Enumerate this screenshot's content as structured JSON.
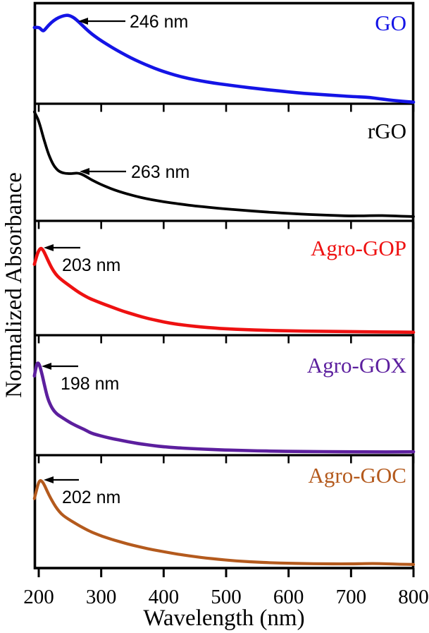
{
  "chart_data": {
    "type": "line",
    "xlabel": "Wavelength (nm)",
    "ylabel": "Normalized Absorbance",
    "xlim": [
      193,
      800
    ],
    "x_ticks": [
      200,
      300,
      400,
      500,
      600,
      700,
      800
    ],
    "x_tick_labels": [
      "200",
      "300",
      "400",
      "500",
      "600",
      "700",
      "800"
    ],
    "y_units": "normalized (arbitrary units, 0-1 per panel)",
    "grid": false,
    "legend_position": "in-panel top-right",
    "frame_color": "#000000",
    "panels": [
      {
        "label": "GO",
        "color": "#1414e6",
        "peak_label": "246 nm",
        "peak_nm": 246,
        "points": [
          [
            193,
            0.755
          ],
          [
            200,
            0.76
          ],
          [
            204,
            0.735
          ],
          [
            207,
            0.72
          ],
          [
            210,
            0.735
          ],
          [
            216,
            0.78
          ],
          [
            224,
            0.825
          ],
          [
            232,
            0.855
          ],
          [
            240,
            0.872
          ],
          [
            246,
            0.878
          ],
          [
            252,
            0.868
          ],
          [
            260,
            0.835
          ],
          [
            270,
            0.775
          ],
          [
            282,
            0.705
          ],
          [
            295,
            0.645
          ],
          [
            310,
            0.585
          ],
          [
            325,
            0.53
          ],
          [
            340,
            0.478
          ],
          [
            355,
            0.432
          ],
          [
            370,
            0.39
          ],
          [
            385,
            0.352
          ],
          [
            400,
            0.318
          ],
          [
            420,
            0.28
          ],
          [
            440,
            0.25
          ],
          [
            460,
            0.226
          ],
          [
            480,
            0.205
          ],
          [
            500,
            0.188
          ],
          [
            525,
            0.168
          ],
          [
            550,
            0.15
          ],
          [
            575,
            0.133
          ],
          [
            600,
            0.117
          ],
          [
            625,
            0.103
          ],
          [
            650,
            0.092
          ],
          [
            675,
            0.082
          ],
          [
            700,
            0.072
          ],
          [
            715,
            0.068
          ],
          [
            730,
            0.062
          ],
          [
            745,
            0.05
          ],
          [
            760,
            0.038
          ],
          [
            775,
            0.028
          ],
          [
            790,
            0.02
          ],
          [
            800,
            0.016
          ]
        ]
      },
      {
        "label": "rGO",
        "color": "#000000",
        "peak_label": "263 nm",
        "peak_nm": 263,
        "points": [
          [
            193,
            0.93
          ],
          [
            197,
            0.89
          ],
          [
            200,
            0.85
          ],
          [
            204,
            0.78
          ],
          [
            208,
            0.7
          ],
          [
            212,
            0.63
          ],
          [
            216,
            0.565
          ],
          [
            220,
            0.515
          ],
          [
            224,
            0.473
          ],
          [
            228,
            0.445
          ],
          [
            232,
            0.425
          ],
          [
            237,
            0.412
          ],
          [
            243,
            0.405
          ],
          [
            250,
            0.403
          ],
          [
            257,
            0.406
          ],
          [
            263,
            0.408
          ],
          [
            269,
            0.398
          ],
          [
            276,
            0.378
          ],
          [
            284,
            0.352
          ],
          [
            293,
            0.327
          ],
          [
            303,
            0.303
          ],
          [
            315,
            0.276
          ],
          [
            328,
            0.252
          ],
          [
            342,
            0.229
          ],
          [
            357,
            0.208
          ],
          [
            372,
            0.19
          ],
          [
            390,
            0.172
          ],
          [
            410,
            0.155
          ],
          [
            430,
            0.141
          ],
          [
            450,
            0.128
          ],
          [
            475,
            0.114
          ],
          [
            500,
            0.102
          ],
          [
            530,
            0.089
          ],
          [
            560,
            0.077
          ],
          [
            590,
            0.067
          ],
          [
            620,
            0.058
          ],
          [
            650,
            0.051
          ],
          [
            680,
            0.045
          ],
          [
            700,
            0.042
          ],
          [
            720,
            0.043
          ],
          [
            740,
            0.046
          ],
          [
            760,
            0.044
          ],
          [
            780,
            0.04
          ],
          [
            800,
            0.037
          ]
        ]
      },
      {
        "label": "Agro-GOP",
        "color": "#ee1111",
        "peak_label": "203 nm",
        "peak_nm": 203,
        "points": [
          [
            193,
            0.62
          ],
          [
            196,
            0.68
          ],
          [
            199,
            0.73
          ],
          [
            203,
            0.765
          ],
          [
            207,
            0.745
          ],
          [
            211,
            0.7
          ],
          [
            216,
            0.64
          ],
          [
            221,
            0.585
          ],
          [
            227,
            0.535
          ],
          [
            233,
            0.5
          ],
          [
            240,
            0.47
          ],
          [
            250,
            0.43
          ],
          [
            260,
            0.39
          ],
          [
            270,
            0.355
          ],
          [
            280,
            0.325
          ],
          [
            293,
            0.295
          ],
          [
            305,
            0.27
          ],
          [
            320,
            0.24
          ],
          [
            335,
            0.21
          ],
          [
            350,
            0.185
          ],
          [
            365,
            0.16
          ],
          [
            380,
            0.14
          ],
          [
            400,
            0.115
          ],
          [
            420,
            0.097
          ],
          [
            440,
            0.083
          ],
          [
            460,
            0.072
          ],
          [
            480,
            0.063
          ],
          [
            500,
            0.056
          ],
          [
            530,
            0.048
          ],
          [
            560,
            0.043
          ],
          [
            600,
            0.038
          ],
          [
            650,
            0.034
          ],
          [
            700,
            0.031
          ],
          [
            750,
            0.028
          ],
          [
            800,
            0.026
          ]
        ]
      },
      {
        "label": "Agro-GOX",
        "color": "#5c1f9e",
        "peak_label": "198 nm",
        "peak_nm": 198,
        "points": [
          [
            193,
            0.66
          ],
          [
            195,
            0.72
          ],
          [
            198,
            0.775
          ],
          [
            201,
            0.755
          ],
          [
            204,
            0.7
          ],
          [
            207,
            0.635
          ],
          [
            210,
            0.565
          ],
          [
            213,
            0.5
          ],
          [
            216,
            0.45
          ],
          [
            220,
            0.405
          ],
          [
            224,
            0.372
          ],
          [
            228,
            0.348
          ],
          [
            233,
            0.328
          ],
          [
            238,
            0.312
          ],
          [
            243,
            0.295
          ],
          [
            249,
            0.276
          ],
          [
            256,
            0.255
          ],
          [
            264,
            0.235
          ],
          [
            273,
            0.215
          ],
          [
            283,
            0.185
          ],
          [
            294,
            0.168
          ],
          [
            306,
            0.152
          ],
          [
            320,
            0.135
          ],
          [
            335,
            0.12
          ],
          [
            350,
            0.105
          ],
          [
            366,
            0.092
          ],
          [
            383,
            0.08
          ],
          [
            400,
            0.07
          ],
          [
            420,
            0.062
          ],
          [
            440,
            0.056
          ],
          [
            465,
            0.05
          ],
          [
            490,
            0.045
          ],
          [
            520,
            0.04
          ],
          [
            550,
            0.036
          ],
          [
            580,
            0.033
          ],
          [
            610,
            0.031
          ],
          [
            640,
            0.03
          ],
          [
            670,
            0.029
          ],
          [
            700,
            0.028
          ],
          [
            740,
            0.027
          ],
          [
            770,
            0.027
          ],
          [
            800,
            0.028
          ]
        ]
      },
      {
        "label": "Agro-GOC",
        "color": "#b45a1d",
        "peak_label": "202 nm",
        "peak_nm": 202,
        "points": [
          [
            193,
            0.615
          ],
          [
            196,
            0.68
          ],
          [
            199,
            0.745
          ],
          [
            202,
            0.78
          ],
          [
            206,
            0.765
          ],
          [
            210,
            0.725
          ],
          [
            214,
            0.675
          ],
          [
            219,
            0.62
          ],
          [
            224,
            0.57
          ],
          [
            230,
            0.52
          ],
          [
            236,
            0.48
          ],
          [
            243,
            0.45
          ],
          [
            250,
            0.425
          ],
          [
            258,
            0.398
          ],
          [
            266,
            0.372
          ],
          [
            275,
            0.345
          ],
          [
            285,
            0.318
          ],
          [
            296,
            0.293
          ],
          [
            308,
            0.27
          ],
          [
            321,
            0.247
          ],
          [
            335,
            0.225
          ],
          [
            350,
            0.203
          ],
          [
            366,
            0.182
          ],
          [
            382,
            0.163
          ],
          [
            398,
            0.147
          ],
          [
            415,
            0.13
          ],
          [
            432,
            0.115
          ],
          [
            450,
            0.101
          ],
          [
            468,
            0.089
          ],
          [
            487,
            0.078
          ],
          [
            506,
            0.068
          ],
          [
            526,
            0.06
          ],
          [
            548,
            0.053
          ],
          [
            572,
            0.047
          ],
          [
            598,
            0.043
          ],
          [
            625,
            0.04
          ],
          [
            655,
            0.038
          ],
          [
            685,
            0.037
          ],
          [
            710,
            0.038
          ],
          [
            735,
            0.041
          ],
          [
            755,
            0.038
          ],
          [
            778,
            0.034
          ],
          [
            800,
            0.032
          ]
        ]
      }
    ]
  }
}
